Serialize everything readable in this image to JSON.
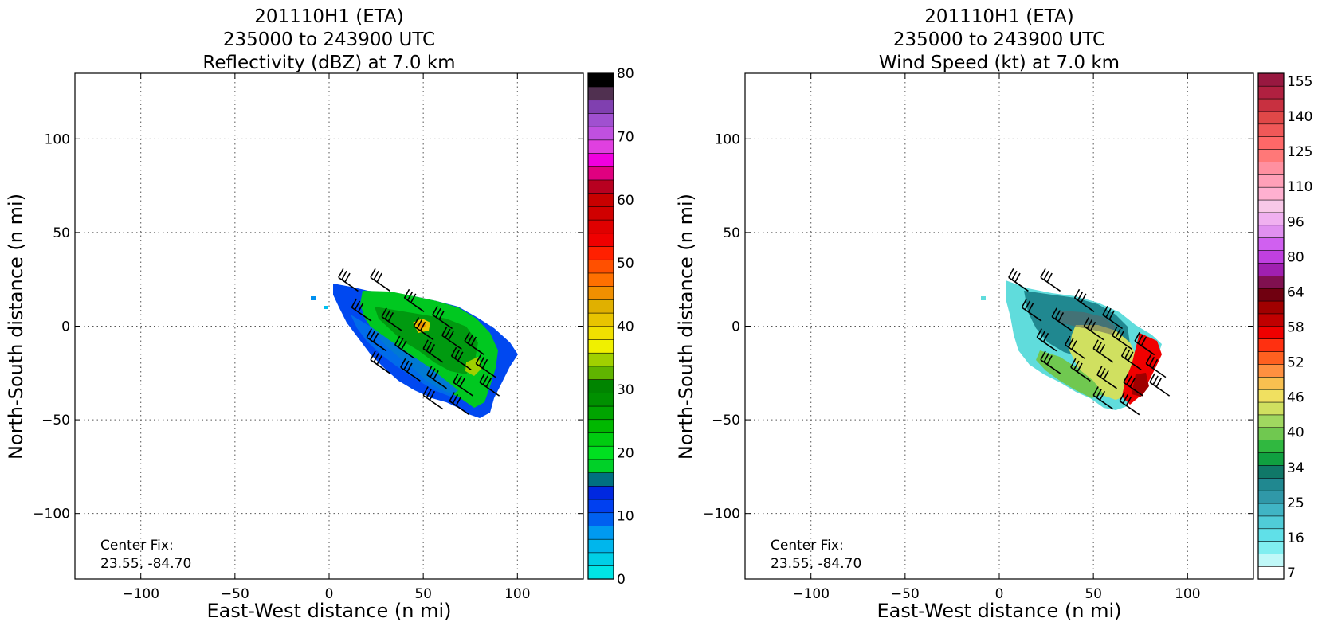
{
  "chart_data": [
    {
      "type": "heatmap",
      "title_lines": [
        "201110H1 (ETA)",
        "235000 to 243900 UTC",
        "Reflectivity (dBZ) at 7.0 km"
      ],
      "xlabel": "East-West distance (n mi)",
      "ylabel": "North-South distance (n mi)",
      "xlim": [
        -135,
        135
      ],
      "ylim": [
        -135,
        135
      ],
      "xticks": [
        -100,
        -50,
        0,
        50,
        100
      ],
      "yticks": [
        -100,
        -50,
        0,
        50,
        100
      ],
      "xtick_labels": [
        "−100",
        "−50",
        "0",
        "50",
        "100"
      ],
      "ytick_labels": [
        "−100",
        "−50",
        "0",
        "50",
        "100"
      ],
      "grid": true,
      "annotation": {
        "line1": "Center Fix:",
        "line2": "23.55, -84.70"
      },
      "colorbar": {
        "ticks": [
          0,
          10,
          20,
          30,
          40,
          50,
          60,
          70,
          80
        ],
        "tick_labels": [
          "0",
          "10",
          "20",
          "30",
          "40",
          "50",
          "60",
          "70",
          "80"
        ],
        "levels": 32,
        "colors": [
          "#00e5e5",
          "#00cfe6",
          "#00b6ec",
          "#009af0",
          "#0060f0",
          "#0040f0",
          "#0028e0",
          "#007080",
          "#00d028",
          "#00e020",
          "#00cc10",
          "#00b800",
          "#00a400",
          "#009000",
          "#008400",
          "#60b400",
          "#a0d000",
          "#f0f000",
          "#f0e000",
          "#e8c400",
          "#e0b000",
          "#f09000",
          "#ff7000",
          "#ff5000",
          "#ff2000",
          "#f00000",
          "#e00000",
          "#d00000",
          "#c80000",
          "#b80020",
          "#e00080",
          "#f000e0",
          "#e040e0",
          "#c050e0",
          "#a050d0",
          "#8040b0",
          "#503050",
          "#000000"
        ],
        "vmin": 0,
        "vmax": 80
      }
    },
    {
      "type": "heatmap",
      "title_lines": [
        "201110H1 (ETA)",
        "235000 to 243900 UTC",
        "Wind Speed (kt) at 7.0 km"
      ],
      "xlabel": "East-West distance (n mi)",
      "ylabel": "North-South distance (n mi)",
      "xlim": [
        -135,
        135
      ],
      "ylim": [
        -135,
        135
      ],
      "xticks": [
        -100,
        -50,
        0,
        50,
        100
      ],
      "yticks": [
        -100,
        -50,
        0,
        50,
        100
      ],
      "xtick_labels": [
        "−100",
        "−50",
        "0",
        "50",
        "100"
      ],
      "ytick_labels": [
        "−100",
        "−50",
        "0",
        "50",
        "100"
      ],
      "grid": true,
      "annotation": {
        "line1": "Center Fix:",
        "line2": "23.55, -84.70"
      },
      "colorbar": {
        "tick_labels": [
          "7",
          "16",
          "25",
          "34",
          "40",
          "46",
          "52",
          "58",
          "64",
          "80",
          "96",
          "110",
          "125",
          "140",
          "155"
        ],
        "colors": [
          "#ffffff",
          "#c0f8f8",
          "#80eef0",
          "#60e0e8",
          "#50ccd8",
          "#40b4c4",
          "#3098a8",
          "#208890",
          "#107868",
          "#10a040",
          "#30b840",
          "#70c850",
          "#a0d860",
          "#d0e060",
          "#f0e060",
          "#f8c050",
          "#ff9040",
          "#ff6020",
          "#ff3010",
          "#f00000",
          "#c00000",
          "#a00000",
          "#700010",
          "#801050",
          "#a020b0",
          "#c040e0",
          "#d060f0",
          "#e090f0",
          "#f0b0f0",
          "#f8c8e8",
          "#ffb0d0",
          "#ffa0b8",
          "#ff90a0",
          "#ff7878",
          "#ff6868",
          "#f05858",
          "#e04848",
          "#c83040",
          "#b02040",
          "#981840"
        ]
      }
    }
  ]
}
